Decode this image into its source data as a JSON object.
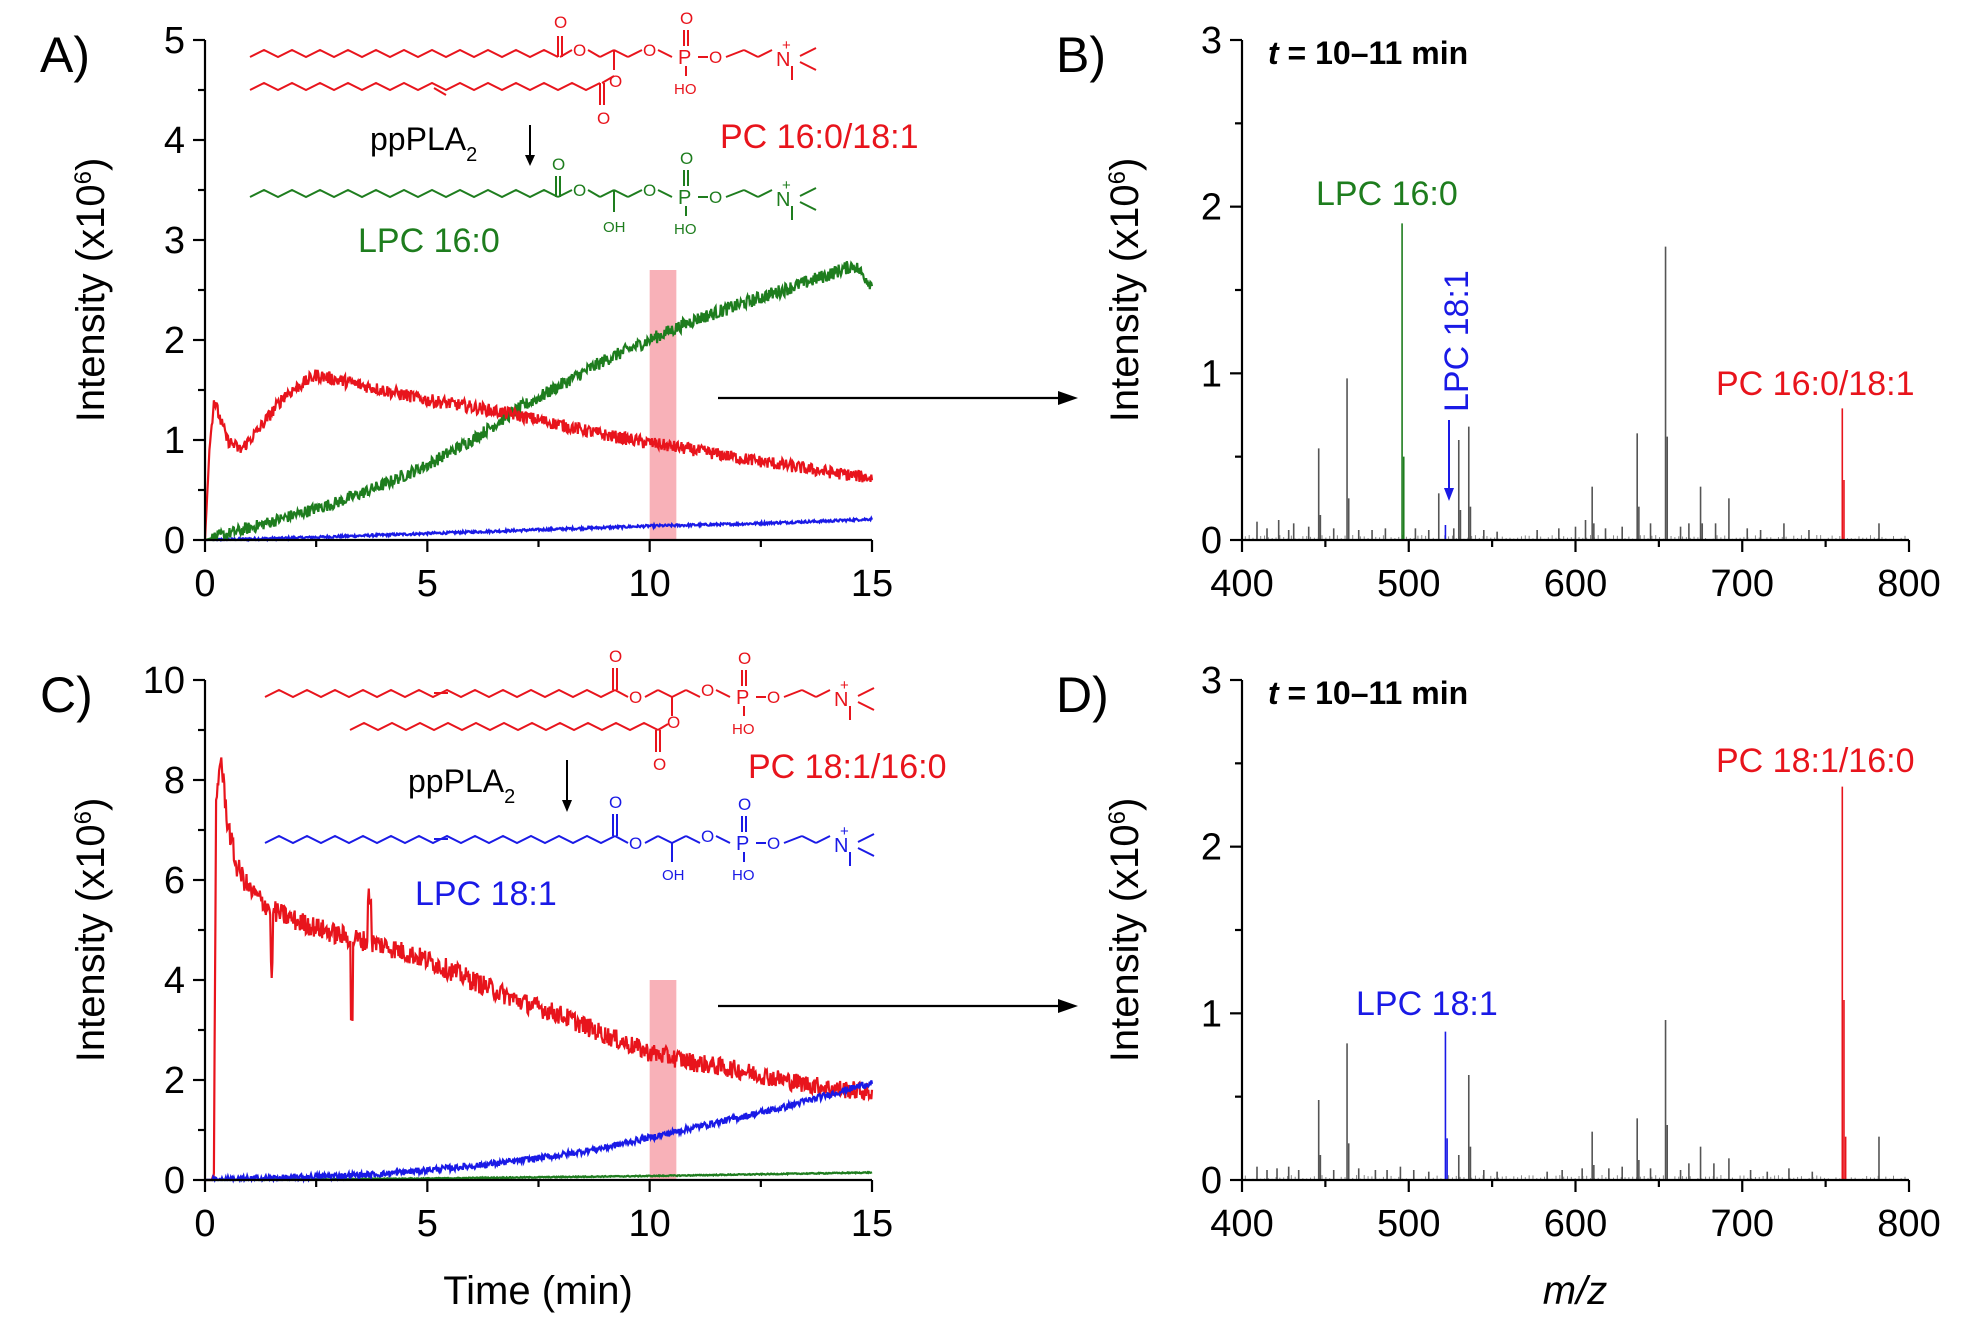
{
  "colors": {
    "red": "#e8141c",
    "green": "#1e7d1e",
    "blue": "#1a1ae6",
    "gray": "#555555",
    "highlight": "#f7a8b0"
  },
  "panels": {
    "A": {
      "letter": "A)",
      "ylabel_main": "Intensity (x10",
      "ylabel_exp": "6",
      "ylabel_close": ")",
      "enzyme_main": "ppPLA",
      "enzyme_sub": "2",
      "substrate_label": "PC 16:0/18:1",
      "product_label": "LPC 16:0",
      "xticks": [
        "0",
        "5",
        "10",
        "15"
      ],
      "yticks": [
        "0",
        "1",
        "2",
        "3",
        "4",
        "5"
      ]
    },
    "B": {
      "letter": "B)",
      "time_var": "t",
      "time_rest": " = 10–11 min",
      "ylabel_main": "Intensity (x10",
      "ylabel_exp": "6",
      "ylabel_close": ")",
      "peak_labels": [
        "LPC 16:0",
        "LPC 18:1",
        "PC 16:0/18:1"
      ],
      "xticks": [
        "400",
        "500",
        "600",
        "700",
        "800"
      ],
      "yticks": [
        "0",
        "1",
        "2",
        "3"
      ]
    },
    "C": {
      "letter": "C)",
      "ylabel_main": "Intensity (x10",
      "ylabel_exp": "6",
      "ylabel_close": ")",
      "xlabel": "Time (min)",
      "enzyme_main": "ppPLA",
      "enzyme_sub": "2",
      "substrate_label": "PC 18:1/16:0",
      "product_label": "LPC 18:1",
      "xticks": [
        "0",
        "5",
        "10",
        "15"
      ],
      "yticks": [
        "0",
        "2",
        "4",
        "6",
        "8",
        "10"
      ]
    },
    "D": {
      "letter": "D)",
      "time_var": "t",
      "time_rest": " = 10–11 min",
      "ylabel_main": "Intensity (x10",
      "ylabel_exp": "6",
      "ylabel_close": ")",
      "xlabel": "m/z",
      "peak_labels": [
        "LPC 18:1",
        "PC 18:1/16:0"
      ],
      "xticks": [
        "400",
        "500",
        "600",
        "700",
        "800"
      ],
      "yticks": [
        "0",
        "1",
        "2",
        "3"
      ]
    }
  },
  "structure_atoms": {
    "O": "O",
    "P": "P",
    "OH": "OH",
    "HO": "HO",
    "N": "N",
    "plus": "+"
  },
  "chart_data": [
    {
      "panel": "A",
      "type": "line",
      "title": "",
      "xlabel": "",
      "ylabel": "Intensity (x10^6)",
      "xlim": [
        0,
        15
      ],
      "ylim": [
        0,
        5
      ],
      "highlight_window": [
        10,
        10.6
      ],
      "series": [
        {
          "name": "PC 16:0/18:1",
          "color": "red",
          "x": [
            0,
            0.1,
            0.2,
            0.5,
            0.8,
            1.2,
            1.8,
            2.5,
            3,
            4,
            5,
            6,
            7,
            8,
            9,
            10,
            11,
            12,
            13,
            14,
            15
          ],
          "y": [
            0,
            0.9,
            1.4,
            1.0,
            0.9,
            1.1,
            1.45,
            1.65,
            1.6,
            1.5,
            1.4,
            1.33,
            1.25,
            1.15,
            1.05,
            0.97,
            0.9,
            0.82,
            0.75,
            0.68,
            0.62
          ],
          "noise": 0.06
        },
        {
          "name": "LPC 16:0",
          "color": "green",
          "x": [
            0,
            1,
            2,
            3,
            4,
            5,
            6,
            7,
            8,
            9,
            10,
            11,
            12,
            13,
            14,
            14.6,
            15
          ],
          "y": [
            0,
            0.12,
            0.25,
            0.38,
            0.55,
            0.75,
            1.0,
            1.3,
            1.55,
            1.8,
            2.0,
            2.2,
            2.35,
            2.5,
            2.65,
            2.75,
            2.55
          ],
          "noise": 0.06
        },
        {
          "name": "LPC 18:1",
          "color": "blue",
          "x": [
            0,
            2,
            4,
            6,
            8,
            10,
            12,
            14,
            15
          ],
          "y": [
            0,
            0.02,
            0.05,
            0.08,
            0.11,
            0.14,
            0.16,
            0.19,
            0.21
          ],
          "noise": 0.012
        }
      ]
    },
    {
      "panel": "B",
      "type": "bar",
      "title": "t = 10–11 min",
      "xlabel": "",
      "ylabel": "Intensity (x10^6)",
      "xlim": [
        400,
        800
      ],
      "ylim": [
        0,
        3
      ],
      "peaks": [
        {
          "mz": 409,
          "y": 0.11,
          "color": "gray"
        },
        {
          "mz": 415,
          "y": 0.07,
          "color": "gray"
        },
        {
          "mz": 422,
          "y": 0.12,
          "color": "gray"
        },
        {
          "mz": 428,
          "y": 0.06,
          "color": "gray"
        },
        {
          "mz": 431,
          "y": 0.1,
          "color": "gray"
        },
        {
          "mz": 440,
          "y": 0.08,
          "color": "gray"
        },
        {
          "mz": 446,
          "y": 0.55,
          "color": "gray"
        },
        {
          "mz": 447,
          "y": 0.15,
          "color": "gray"
        },
        {
          "mz": 455,
          "y": 0.07,
          "color": "gray"
        },
        {
          "mz": 463,
          "y": 0.97,
          "color": "gray"
        },
        {
          "mz": 464,
          "y": 0.25,
          "color": "gray"
        },
        {
          "mz": 470,
          "y": 0.06,
          "color": "gray"
        },
        {
          "mz": 478,
          "y": 0.06,
          "color": "gray"
        },
        {
          "mz": 486,
          "y": 0.07,
          "color": "gray"
        },
        {
          "mz": 496,
          "y": 1.9,
          "color": "green"
        },
        {
          "mz": 497,
          "y": 0.5,
          "color": "green"
        },
        {
          "mz": 504,
          "y": 0.07,
          "color": "gray"
        },
        {
          "mz": 512,
          "y": 0.06,
          "color": "gray"
        },
        {
          "mz": 518,
          "y": 0.28,
          "color": "gray"
        },
        {
          "mz": 522,
          "y": 0.09,
          "color": "blue"
        },
        {
          "mz": 527,
          "y": 0.07,
          "color": "gray"
        },
        {
          "mz": 530,
          "y": 0.6,
          "color": "gray"
        },
        {
          "mz": 531,
          "y": 0.18,
          "color": "gray"
        },
        {
          "mz": 536,
          "y": 0.68,
          "color": "gray"
        },
        {
          "mz": 537,
          "y": 0.2,
          "color": "gray"
        },
        {
          "mz": 545,
          "y": 0.06,
          "color": "gray"
        },
        {
          "mz": 553,
          "y": 0.05,
          "color": "gray"
        },
        {
          "mz": 577,
          "y": 0.06,
          "color": "gray"
        },
        {
          "mz": 590,
          "y": 0.07,
          "color": "gray"
        },
        {
          "mz": 600,
          "y": 0.08,
          "color": "gray"
        },
        {
          "mz": 606,
          "y": 0.12,
          "color": "gray"
        },
        {
          "mz": 610,
          "y": 0.32,
          "color": "gray"
        },
        {
          "mz": 611,
          "y": 0.1,
          "color": "gray"
        },
        {
          "mz": 618,
          "y": 0.07,
          "color": "gray"
        },
        {
          "mz": 628,
          "y": 0.08,
          "color": "gray"
        },
        {
          "mz": 637,
          "y": 0.64,
          "color": "gray"
        },
        {
          "mz": 638,
          "y": 0.2,
          "color": "gray"
        },
        {
          "mz": 645,
          "y": 0.1,
          "color": "gray"
        },
        {
          "mz": 654,
          "y": 1.76,
          "color": "gray"
        },
        {
          "mz": 655,
          "y": 0.62,
          "color": "gray"
        },
        {
          "mz": 663,
          "y": 0.08,
          "color": "gray"
        },
        {
          "mz": 668,
          "y": 0.1,
          "color": "gray"
        },
        {
          "mz": 675,
          "y": 0.32,
          "color": "gray"
        },
        {
          "mz": 676,
          "y": 0.1,
          "color": "gray"
        },
        {
          "mz": 684,
          "y": 0.1,
          "color": "gray"
        },
        {
          "mz": 692,
          "y": 0.25,
          "color": "gray"
        },
        {
          "mz": 703,
          "y": 0.07,
          "color": "gray"
        },
        {
          "mz": 711,
          "y": 0.06,
          "color": "gray"
        },
        {
          "mz": 725,
          "y": 0.1,
          "color": "gray"
        },
        {
          "mz": 740,
          "y": 0.06,
          "color": "gray"
        },
        {
          "mz": 760,
          "y": 0.79,
          "color": "red"
        },
        {
          "mz": 761,
          "y": 0.36,
          "color": "red"
        },
        {
          "mz": 782,
          "y": 0.1,
          "color": "gray"
        }
      ]
    },
    {
      "panel": "C",
      "type": "line",
      "title": "",
      "xlabel": "Time (min)",
      "ylabel": "Intensity (x10^6)",
      "xlim": [
        0,
        15
      ],
      "ylim": [
        0,
        10
      ],
      "highlight_window": [
        10,
        10.6
      ],
      "series": [
        {
          "name": "PC 18:1/16:0",
          "color": "red",
          "x": [
            0,
            0.2,
            0.25,
            0.35,
            0.5,
            0.7,
            1.0,
            1.5,
            2,
            3,
            4,
            5,
            6,
            7,
            8,
            9,
            10,
            11,
            12,
            13,
            14,
            15
          ],
          "y": [
            0,
            0,
            7.5,
            8.5,
            7.2,
            6.3,
            5.8,
            5.4,
            5.2,
            4.9,
            4.7,
            4.4,
            4.0,
            3.6,
            3.3,
            2.9,
            2.55,
            2.35,
            2.2,
            2.0,
            1.85,
            1.75
          ],
          "noise": 0.17
        },
        {
          "name": "LPC 18:1",
          "color": "blue",
          "x": [
            0,
            2,
            4,
            5,
            6,
            7,
            8,
            9,
            10,
            11,
            12,
            13,
            14,
            15
          ],
          "y": [
            0,
            0.05,
            0.12,
            0.2,
            0.28,
            0.38,
            0.5,
            0.65,
            0.85,
            1.05,
            1.25,
            1.45,
            1.7,
            1.95
          ],
          "noise": 0.06
        },
        {
          "name": "LPC 16:0",
          "color": "green",
          "x": [
            0,
            5,
            10,
            15
          ],
          "y": [
            0,
            0.03,
            0.08,
            0.15
          ],
          "noise": 0.01
        }
      ]
    },
    {
      "panel": "D",
      "type": "bar",
      "title": "t = 10–11 min",
      "xlabel": "m/z",
      "ylabel": "Intensity (x10^6)",
      "xlim": [
        400,
        800
      ],
      "ylim": [
        0,
        3
      ],
      "peaks": [
        {
          "mz": 409,
          "y": 0.08,
          "color": "gray"
        },
        {
          "mz": 415,
          "y": 0.06,
          "color": "gray"
        },
        {
          "mz": 421,
          "y": 0.07,
          "color": "gray"
        },
        {
          "mz": 428,
          "y": 0.08,
          "color": "gray"
        },
        {
          "mz": 434,
          "y": 0.06,
          "color": "gray"
        },
        {
          "mz": 446,
          "y": 0.48,
          "color": "gray"
        },
        {
          "mz": 447,
          "y": 0.15,
          "color": "gray"
        },
        {
          "mz": 455,
          "y": 0.06,
          "color": "gray"
        },
        {
          "mz": 463,
          "y": 0.82,
          "color": "gray"
        },
        {
          "mz": 464,
          "y": 0.22,
          "color": "gray"
        },
        {
          "mz": 470,
          "y": 0.07,
          "color": "gray"
        },
        {
          "mz": 480,
          "y": 0.06,
          "color": "gray"
        },
        {
          "mz": 487,
          "y": 0.06,
          "color": "gray"
        },
        {
          "mz": 495,
          "y": 0.08,
          "color": "gray"
        },
        {
          "mz": 503,
          "y": 0.06,
          "color": "gray"
        },
        {
          "mz": 512,
          "y": 0.05,
          "color": "gray"
        },
        {
          "mz": 522,
          "y": 0.89,
          "color": "blue"
        },
        {
          "mz": 523,
          "y": 0.25,
          "color": "blue"
        },
        {
          "mz": 530,
          "y": 0.15,
          "color": "gray"
        },
        {
          "mz": 536,
          "y": 0.63,
          "color": "gray"
        },
        {
          "mz": 537,
          "y": 0.2,
          "color": "gray"
        },
        {
          "mz": 545,
          "y": 0.06,
          "color": "gray"
        },
        {
          "mz": 553,
          "y": 0.05,
          "color": "gray"
        },
        {
          "mz": 583,
          "y": 0.05,
          "color": "gray"
        },
        {
          "mz": 592,
          "y": 0.06,
          "color": "gray"
        },
        {
          "mz": 604,
          "y": 0.07,
          "color": "gray"
        },
        {
          "mz": 610,
          "y": 0.29,
          "color": "gray"
        },
        {
          "mz": 611,
          "y": 0.09,
          "color": "gray"
        },
        {
          "mz": 620,
          "y": 0.07,
          "color": "gray"
        },
        {
          "mz": 628,
          "y": 0.08,
          "color": "gray"
        },
        {
          "mz": 637,
          "y": 0.37,
          "color": "gray"
        },
        {
          "mz": 638,
          "y": 0.12,
          "color": "gray"
        },
        {
          "mz": 645,
          "y": 0.07,
          "color": "gray"
        },
        {
          "mz": 654,
          "y": 0.96,
          "color": "gray"
        },
        {
          "mz": 655,
          "y": 0.33,
          "color": "gray"
        },
        {
          "mz": 663,
          "y": 0.06,
          "color": "gray"
        },
        {
          "mz": 668,
          "y": 0.1,
          "color": "gray"
        },
        {
          "mz": 675,
          "y": 0.2,
          "color": "gray"
        },
        {
          "mz": 683,
          "y": 0.1,
          "color": "gray"
        },
        {
          "mz": 692,
          "y": 0.13,
          "color": "gray"
        },
        {
          "mz": 705,
          "y": 0.06,
          "color": "gray"
        },
        {
          "mz": 715,
          "y": 0.05,
          "color": "gray"
        },
        {
          "mz": 728,
          "y": 0.07,
          "color": "gray"
        },
        {
          "mz": 742,
          "y": 0.05,
          "color": "gray"
        },
        {
          "mz": 760,
          "y": 2.36,
          "color": "red"
        },
        {
          "mz": 761,
          "y": 1.08,
          "color": "red"
        },
        {
          "mz": 762,
          "y": 0.26,
          "color": "red"
        },
        {
          "mz": 782,
          "y": 0.26,
          "color": "gray"
        }
      ]
    }
  ]
}
